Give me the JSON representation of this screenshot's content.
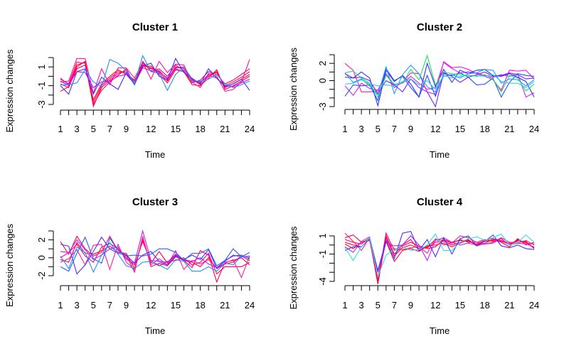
{
  "chart_data": [
    {
      "type": "line",
      "title": "Cluster 1",
      "xlabel": "Time",
      "ylabel": "Expression changes",
      "x": [
        1,
        2,
        3,
        4,
        5,
        6,
        7,
        8,
        9,
        10,
        11,
        12,
        13,
        14,
        15,
        16,
        17,
        18,
        19,
        20,
        21,
        22,
        23,
        24
      ],
      "xtick_labels": [
        "1",
        "3",
        "5",
        "7",
        "9",
        "12",
        "15",
        "18",
        "21",
        "24"
      ],
      "ylim": [
        -3,
        2
      ],
      "ytick_labels": [
        "-3",
        "-1",
        "1"
      ],
      "series": [
        {
          "color": "#FF0040",
          "values": [
            -0.5,
            -1.0,
            1.2,
            1.5,
            -3.2,
            -1.2,
            -0.4,
            0.3,
            0.6,
            -0.7,
            1.4,
            0.8,
            0.6,
            -0.3,
            1.0,
            0.8,
            -0.5,
            -0.7,
            0.2,
            0.4,
            -1.0,
            -0.6,
            -0.1,
            0.5
          ]
        },
        {
          "color": "#FF0050",
          "values": [
            -0.8,
            -1.2,
            1.0,
            1.6,
            -2.8,
            -1.0,
            -0.2,
            0.5,
            0.4,
            -0.5,
            1.2,
            0.9,
            0.4,
            -0.5,
            0.9,
            1.0,
            -0.3,
            -0.9,
            0.0,
            0.5,
            -1.2,
            -0.8,
            -0.3,
            0.2
          ]
        },
        {
          "color": "#FF0064",
          "values": [
            -0.3,
            -0.8,
            1.5,
            1.4,
            -3.0,
            -1.5,
            -0.6,
            0.1,
            0.8,
            -0.9,
            1.6,
            0.5,
            0.8,
            0.0,
            1.2,
            0.6,
            -0.7,
            -0.4,
            0.5,
            0.2,
            -0.8,
            -0.4,
            0.2,
            0.8
          ]
        },
        {
          "color": "#FF0030",
          "values": [
            -1.6,
            -1.1,
            0.8,
            1.2,
            -2.5,
            -0.8,
            0.0,
            0.7,
            0.2,
            -0.4,
            1.0,
            1.1,
            0.2,
            -0.7,
            0.7,
            0.5,
            -0.9,
            -1.0,
            -0.2,
            0.7,
            -1.4,
            -1.0,
            -0.5,
            0.0
          ]
        },
        {
          "color": "#FF10A0",
          "values": [
            -0.6,
            -0.5,
            1.9,
            1.9,
            -1.8,
            0.8,
            -0.9,
            0.9,
            0.9,
            -0.2,
            1.5,
            -0.3,
            1.6,
            0.4,
            1.3,
            1.2,
            -0.6,
            -1.2,
            0.3,
            0.0,
            -1.6,
            -1.4,
            -0.6,
            1.8
          ]
        },
        {
          "color": "#E000FF",
          "values": [
            -0.2,
            -0.9,
            0.5,
            0.4,
            -1.2,
            -0.6,
            -0.5,
            0.0,
            0.2,
            -0.8,
            0.9,
            0.6,
            0.5,
            -0.2,
            0.8,
            0.5,
            -0.4,
            -0.6,
            0.1,
            -0.2,
            -1.0,
            -1.1,
            -0.7,
            -0.3
          ]
        },
        {
          "color": "#4030FF",
          "values": [
            -1.0,
            -1.9,
            0.5,
            0.8,
            -1.9,
            -0.1,
            -0.8,
            -1.4,
            0.4,
            -0.9,
            1.1,
            1.4,
            0.0,
            -0.4,
            1.9,
            0.4,
            -0.2,
            -0.8,
            0.8,
            -0.2,
            -1.1,
            -0.8,
            -0.3,
            -1.5
          ]
        },
        {
          "color": "#1E90FF",
          "values": [
            -0.9,
            -0.9,
            -0.7,
            0.7,
            -0.6,
            -1.1,
            1.8,
            1.4,
            0.6,
            -0.8,
            2.2,
            0.5,
            0.3,
            -1.5,
            0.2,
            1.0,
            -0.5,
            -0.5,
            -0.3,
            0.2,
            -0.8,
            -1.2,
            -0.9,
            -0.5
          ]
        }
      ]
    },
    {
      "type": "line",
      "title": "Cluster 2",
      "xlabel": "Time",
      "ylabel": "Expression changes",
      "x": [
        1,
        2,
        3,
        4,
        5,
        6,
        7,
        8,
        9,
        10,
        11,
        12,
        13,
        14,
        15,
        16,
        17,
        18,
        19,
        20,
        21,
        22,
        23,
        24
      ],
      "xtick_labels": [
        "1",
        "3",
        "5",
        "7",
        "9",
        "12",
        "15",
        "18",
        "21",
        "24"
      ],
      "ylim": [
        -3,
        3
      ],
      "ytick_labels": [
        "-3",
        "0",
        "2"
      ],
      "series": [
        {
          "color": "#FF10E0",
          "values": [
            2.0,
            1.2,
            -1.3,
            -1.3,
            -1.2,
            0.8,
            -0.8,
            -0.2,
            0.9,
            0.8,
            -1.3,
            -1.6,
            2.2,
            1.5,
            1.6,
            1.3,
            0.8,
            0.5,
            0.1,
            -1.1,
            1.2,
            1.1,
            1.2,
            0.2
          ]
        },
        {
          "color": "#E020FF",
          "values": [
            -0.6,
            -1.7,
            -0.3,
            -0.9,
            -1.1,
            0.8,
            -0.5,
            -0.3,
            0.5,
            -0.3,
            -1.0,
            -0.8,
            2.1,
            1.4,
            0.9,
            1.0,
            0.9,
            0.6,
            0.4,
            0.7,
            0.5,
            0.8,
            -1.9,
            -1.4
          ]
        },
        {
          "color": "#3030FF",
          "values": [
            0.4,
            0.3,
            1.0,
            0.3,
            -2.9,
            1.2,
            -0.1,
            0.6,
            -0.4,
            -1.9,
            2.0,
            -0.7,
            1.3,
            -0.2,
            1.2,
            0.8,
            1.2,
            1.3,
            0.6,
            0.5,
            0.8,
            0.4,
            -0.1,
            -1.9
          ]
        },
        {
          "color": "#2050FF",
          "values": [
            -1.8,
            -0.5,
            -0.6,
            -0.5,
            -2.3,
            1.4,
            0.0,
            0.5,
            -0.8,
            -1.9,
            0.6,
            -1.8,
            0.8,
            0.6,
            0.9,
            0.4,
            -0.5,
            -0.4,
            0.3,
            -1.9,
            -0.2,
            0.8,
            0.6,
            0.5
          ]
        },
        {
          "color": "#1EA0FF",
          "values": [
            0.9,
            -0.2,
            0.2,
            -0.6,
            -1.6,
            1.6,
            -1.5,
            0.7,
            1.8,
            0.8,
            -0.7,
            -1.3,
            0.5,
            0.7,
            0.3,
            0.8,
            0.9,
            1.3,
            1.2,
            -0.3,
            0.2,
            0.1,
            -0.6,
            0.1
          ]
        },
        {
          "color": "#20E060",
          "values": [
            0.9,
            1.1,
            0.3,
            -0.3,
            -1.9,
            0.6,
            -0.4,
            -0.3,
            1.3,
            0.1,
            2.9,
            -0.5,
            1.0,
            0.8,
            0.7,
            0.6,
            0.5,
            0.7,
            0.2,
            -1.3,
            0.6,
            0.3,
            -1.2,
            -0.4
          ]
        },
        {
          "color": "#7A20FF",
          "values": [
            0.8,
            0.3,
            0.4,
            0.0,
            -1.5,
            0.0,
            -0.5,
            -1.3,
            0.2,
            -0.8,
            -1.3,
            -3.0,
            0.9,
            0.5,
            -0.2,
            0.4,
            0.7,
            1.0,
            0.5,
            0.6,
            0.9,
            0.7,
            0.2,
            0.3
          ]
        },
        {
          "color": "#30C8F0",
          "values": [
            -0.4,
            -0.3,
            0.1,
            -0.4,
            -0.6,
            -0.5,
            -0.6,
            -0.1,
            0.2,
            -0.5,
            0.0,
            -1.0,
            0.6,
            0.3,
            0.5,
            0.6,
            0.6,
            0.5,
            0.7,
            -0.1,
            -0.3,
            -0.3,
            -0.8,
            -0.1
          ]
        }
      ]
    },
    {
      "type": "line",
      "title": "Cluster 3",
      "xlabel": "Time",
      "ylabel": "Expression changes",
      "x": [
        1,
        2,
        3,
        4,
        5,
        6,
        7,
        8,
        9,
        10,
        11,
        12,
        13,
        14,
        15,
        16,
        17,
        18,
        19,
        20,
        21,
        22,
        23,
        24
      ],
      "xtick_labels": [
        "1",
        "3",
        "5",
        "7",
        "9",
        "12",
        "15",
        "18",
        "21",
        "24"
      ],
      "ylim": [
        -2,
        3
      ],
      "ytick_labels": [
        "-2",
        "0",
        "2"
      ],
      "series": [
        {
          "color": "#FF0050",
          "values": [
            1.8,
            0.4,
            2.4,
            1.0,
            0.2,
            0.6,
            2.4,
            0.8,
            0.3,
            -1.6,
            2.4,
            -1.0,
            -0.6,
            -0.9,
            0.1,
            -0.3,
            -1.1,
            0.8,
            0.3,
            -2.7,
            -0.5,
            -0.3,
            0.0,
            -0.8
          ]
        },
        {
          "color": "#FF0070",
          "values": [
            0.0,
            0.6,
            1.5,
            0.2,
            -0.5,
            1.2,
            1.6,
            1.0,
            0.0,
            -0.8,
            1.8,
            -0.4,
            -0.9,
            -0.4,
            -0.3,
            0.0,
            -0.8,
            -0.5,
            0.5,
            -1.8,
            -1.0,
            -1.0,
            -1.0,
            -0.5
          ]
        },
        {
          "color": "#FF0040",
          "values": [
            -0.2,
            -0.5,
            1.7,
            0.5,
            0.4,
            0.8,
            1.3,
            0.6,
            0.5,
            -1.2,
            2.0,
            -0.6,
            0.7,
            -0.6,
            0.3,
            -0.3,
            -0.5,
            -1.0,
            0.0,
            -1.2,
            -0.7,
            -0.5,
            0.2,
            -0.3
          ]
        },
        {
          "color": "#FF20A0",
          "values": [
            -0.5,
            -0.1,
            0.9,
            -0.8,
            1.4,
            1.5,
            -1.3,
            1.5,
            -0.5,
            -1.3,
            2.3,
            -0.8,
            -0.1,
            -0.8,
            0.8,
            -1.3,
            -0.3,
            -0.7,
            -0.2,
            -1.1,
            -0.6,
            -0.2,
            -2.2,
            0.2
          ]
        },
        {
          "color": "#C020FF",
          "values": [
            0.7,
            0.6,
            2.0,
            0.9,
            -0.2,
            0.3,
            1.0,
            1.2,
            -0.2,
            -0.6,
            3.0,
            -0.3,
            -0.4,
            -0.5,
            0.4,
            -0.2,
            -0.4,
            0.0,
            -0.7,
            -1.1,
            -0.4,
            0.3,
            0.1,
            0.2
          ]
        },
        {
          "color": "#5030FF",
          "values": [
            1.5,
            1.3,
            -1.8,
            -0.8,
            0.7,
            2.3,
            1.0,
            0.5,
            0.3,
            -0.6,
            0.3,
            0.7,
            -0.4,
            -0.8,
            0.2,
            -0.2,
            0.3,
            -0.2,
            0.9,
            -1.2,
            -0.3,
            0.2,
            0.3,
            -0.1
          ]
        },
        {
          "color": "#2060FF",
          "values": [
            -1.0,
            -1.5,
            0.5,
            2.3,
            -0.1,
            -0.6,
            2.2,
            0.8,
            0.2,
            0.3,
            0.2,
            0.4,
            1.0,
            1.0,
            0.6,
            -0.3,
            0.5,
            0.5,
            1.0,
            -0.9,
            -0.3,
            1.0,
            0.1,
            0.6
          ]
        },
        {
          "color": "#1E90FF",
          "values": [
            0.2,
            -1.2,
            1.2,
            0.6,
            -1.6,
            0.3,
            1.7,
            0.4,
            -0.9,
            -1.2,
            -0.5,
            -0.4,
            -0.8,
            -1.3,
            -0.2,
            -0.4,
            -1.5,
            -1.5,
            -1.0,
            -1.5,
            -0.6,
            -0.8,
            0.2,
            0.0
          ]
        }
      ]
    },
    {
      "type": "line",
      "title": "Cluster 4",
      "xlabel": "Time",
      "ylabel": "Expression changes",
      "x": [
        1,
        2,
        3,
        4,
        5,
        6,
        7,
        8,
        9,
        10,
        11,
        12,
        13,
        14,
        15,
        16,
        17,
        18,
        19,
        20,
        21,
        22,
        23,
        24
      ],
      "xtick_labels": [
        "1",
        "3",
        "5",
        "7",
        "9",
        "12",
        "15",
        "18",
        "21",
        "24"
      ],
      "ylim": [
        -4,
        1
      ],
      "ytick_labels": [
        "-4",
        "-1",
        "1"
      ],
      "series": [
        {
          "color": "#FF0040",
          "values": [
            0.3,
            0.0,
            -0.2,
            0.7,
            -4.3,
            0.8,
            -1.2,
            -0.3,
            0.0,
            -0.4,
            -0.3,
            0.3,
            0.4,
            0.0,
            0.3,
            0.5,
            0.0,
            0.4,
            0.5,
            0.7,
            0.0,
            0.6,
            0.2,
            0.1
          ]
        },
        {
          "color": "#FF0060",
          "values": [
            0.6,
            0.3,
            0.1,
            0.8,
            -4.0,
            1.3,
            -0.6,
            0.0,
            0.6,
            -0.6,
            -0.2,
            0.6,
            0.5,
            0.2,
            0.6,
            0.3,
            0.3,
            0.6,
            0.4,
            0.5,
            0.2,
            0.4,
            0.4,
            -0.4
          ]
        },
        {
          "color": "#FF0030",
          "values": [
            0.1,
            -0.4,
            0.3,
            0.6,
            -3.6,
            0.4,
            -1.8,
            -0.6,
            -0.4,
            -0.7,
            -0.1,
            0.0,
            0.2,
            -0.2,
            0.2,
            0.6,
            -0.1,
            0.2,
            0.6,
            0.3,
            -0.2,
            0.7,
            0.0,
            0.3
          ]
        },
        {
          "color": "#FF2080",
          "values": [
            1.3,
            0.4,
            -0.6,
            0.8,
            -3.8,
            0.5,
            -0.4,
            -0.5,
            -0.3,
            -0.2,
            -0.9,
            0.7,
            0.0,
            0.2,
            1.0,
            0.8,
            0.3,
            0.1,
            0.3,
            0.8,
            0.3,
            0.2,
            0.5,
            0.0
          ]
        },
        {
          "color": "#FF0050",
          "values": [
            0.8,
            1.1,
            0.3,
            0.5,
            -3.9,
            1.0,
            -1.0,
            -0.1,
            0.3,
            -0.1,
            -0.4,
            -0.2,
            0.6,
            0.3,
            0.5,
            0.4,
            0.1,
            0.5,
            0.7,
            0.4,
            0.1,
            0.5,
            0.3,
            -0.3
          ]
        },
        {
          "color": "#C020FF",
          "values": [
            -0.2,
            -0.8,
            0.4,
            0.9,
            -3.0,
            0.3,
            -0.1,
            0.0,
            1.0,
            0.0,
            -1.7,
            0.5,
            0.8,
            0.3,
            0.0,
            0.2,
            0.0,
            0.1,
            0.2,
            0.7,
            0.0,
            0.2,
            0.1,
            -0.2
          ]
        },
        {
          "color": "#4030FF",
          "values": [
            -0.6,
            -0.2,
            -0.2,
            0.7,
            -2.8,
            0.5,
            -1.5,
            1.3,
            1.5,
            -0.6,
            0.6,
            -1.3,
            0.8,
            -1.0,
            0.7,
            1.0,
            -0.1,
            0.4,
            1.1,
            -0.1,
            -0.3,
            0.0,
            -0.4,
            -0.5
          ]
        },
        {
          "color": "#30E0E0",
          "values": [
            -0.3,
            -1.7,
            -0.2,
            0.8,
            -3.5,
            -1.1,
            -0.5,
            -0.2,
            -0.6,
            -0.5,
            0.0,
            1.2,
            -0.6,
            -0.6,
            0.3,
            0.7,
            0.9,
            0.5,
            0.8,
            1.2,
            0.0,
            0.3,
            1.1,
            0.3
          ]
        }
      ]
    }
  ]
}
